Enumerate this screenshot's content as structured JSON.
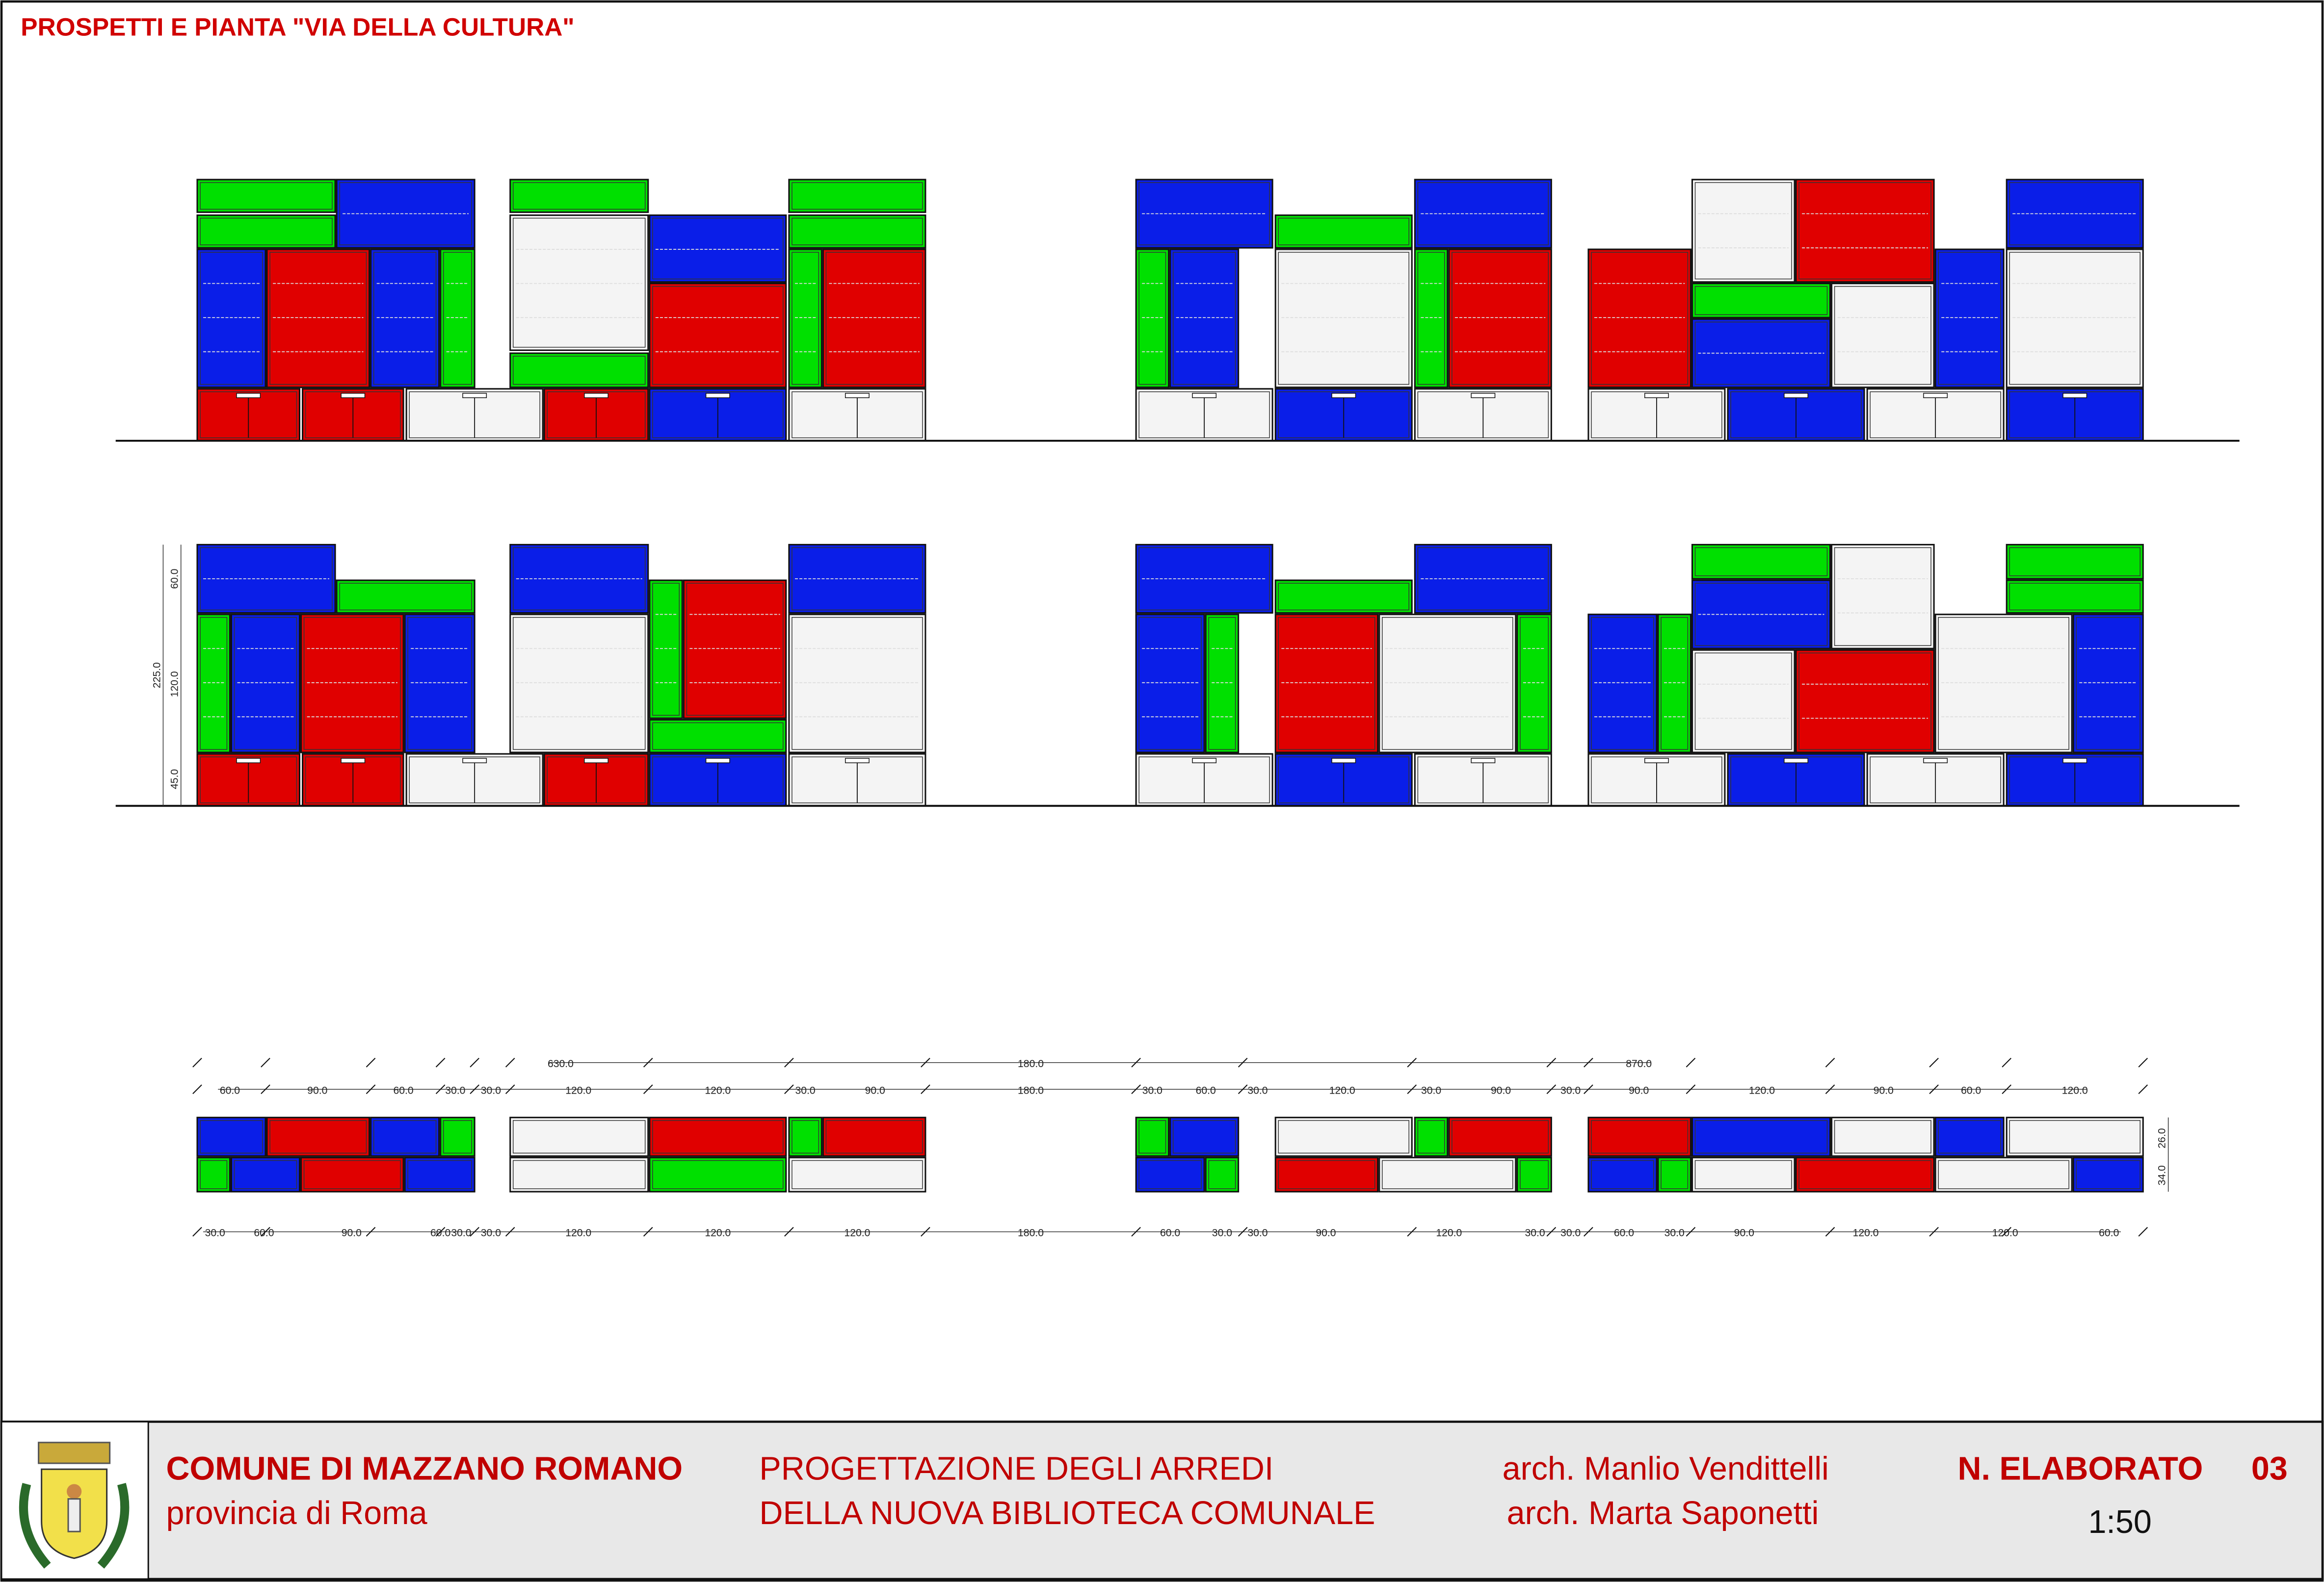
{
  "header": {
    "title": "PROSPETTI E PIANTA \"VIA DELLA CULTURA\""
  },
  "dimensions": {
    "overall": [
      "630.0",
      "180.0",
      "870.0"
    ],
    "top": [
      "60.0",
      "90.0",
      "60.0",
      "30.0",
      "30.0",
      "120.0",
      "120.0",
      "30.0",
      "90.0",
      "180.0",
      "30.0",
      "60.0",
      "30.0",
      "120.0",
      "30.0",
      "90.0",
      "30.0",
      "90.0",
      "120.0",
      "90.0",
      "60.0",
      "120.0"
    ],
    "bottom": [
      "30.0",
      "60.0",
      "90.0",
      "60.0",
      "30.0",
      "30.0",
      "120.0",
      "120.0",
      "120.0",
      "180.0",
      "60.0",
      "30.0",
      "30.0",
      "90.0",
      "120.0",
      "30.0",
      "30.0",
      "60.0",
      "30.0",
      "90.0",
      "120.0",
      "120.0",
      "60.0"
    ],
    "elevation": [
      "60.0",
      "120.0",
      "45.0",
      "225.0"
    ],
    "plan_depth": [
      "26.0",
      "34.0"
    ]
  },
  "footer": {
    "municipality": "COMUNE DI MAZZANO ROMANO",
    "province": "provincia di Roma",
    "project_line_1": "PROGETTAZIONE DEGLI ARREDI",
    "project_line_2": "DELLA NUOVA BIBLIOTECA COMUNALE",
    "architect_1": "arch. Manlio Vendittelli",
    "architect_2": "arch. Marta Saponetti",
    "drawing_label": "N. ELABORATO",
    "drawing_number": "03",
    "scale": "1:50"
  }
}
